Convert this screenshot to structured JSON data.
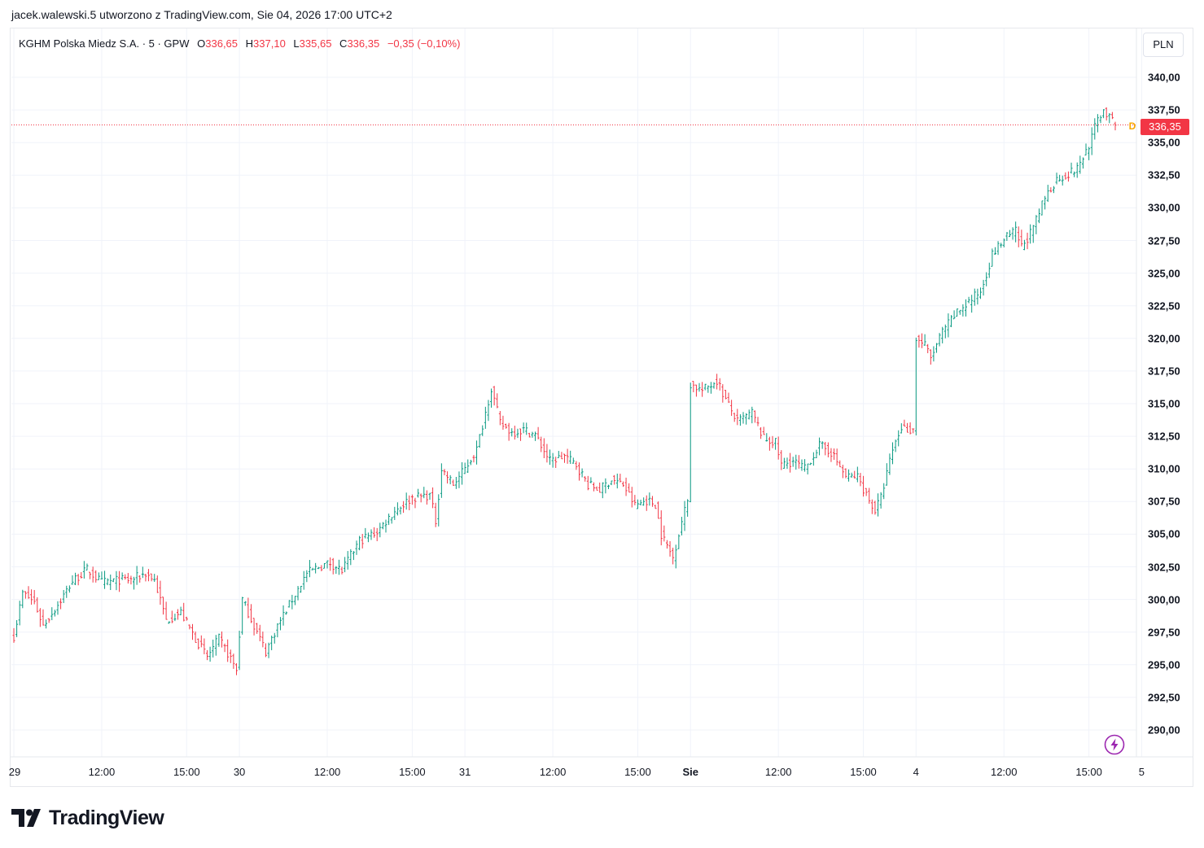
{
  "header": {
    "text": "jacek.walewski.5 utworzono z TradingView.com, Sie 04, 2026 17:00 UTC+2"
  },
  "legend": {
    "symbol": "KGHM Polska Miedz S.A. · 5 · GPW",
    "o_label": "O",
    "o_value": "336,65",
    "h_label": "H",
    "h_value": "337,10",
    "l_label": "L",
    "l_value": "335,65",
    "c_label": "C",
    "c_value": "336,35",
    "change": "−0,35 (−0,10%)"
  },
  "currency": "PLN",
  "last_price_label": "336,35",
  "d_badge": "D",
  "brand": {
    "name": "TradingView",
    "logo_icon": "tradingview-logo-icon"
  },
  "colors": {
    "up": "#089981",
    "down": "#f23645",
    "grid": "#f0f3fa",
    "last_price_line": "#f23645",
    "bolt": "#9c27b0"
  },
  "chart_data": {
    "type": "ohlc-bars",
    "interval": "5",
    "ylim": [
      288.5,
      342
    ],
    "y_ticks": [
      "340,00",
      "337,50",
      "335,00",
      "332,50",
      "330,00",
      "327,50",
      "325,00",
      "322,50",
      "320,00",
      "317,50",
      "315,00",
      "312,50",
      "310,00",
      "307,50",
      "305,00",
      "302,50",
      "300,00",
      "297,50",
      "295,00",
      "292,50",
      "290,00"
    ],
    "y_tick_values": [
      340,
      337.5,
      335,
      332.5,
      330,
      327.5,
      325,
      322.5,
      320,
      317.5,
      315,
      312.5,
      310,
      307.5,
      305,
      302.5,
      300,
      297.5,
      295,
      292.5,
      290
    ],
    "x_ticks": [
      {
        "label": "29",
        "bar": 0,
        "bold": false
      },
      {
        "label": "12:00",
        "bar": 30,
        "bold": false
      },
      {
        "label": "15:00",
        "bar": 59,
        "bold": false
      },
      {
        "label": "30",
        "bar": 77,
        "bold": false
      },
      {
        "label": "12:00",
        "bar": 107,
        "bold": false
      },
      {
        "label": "15:00",
        "bar": 136,
        "bold": false
      },
      {
        "label": "31",
        "bar": 154,
        "bold": false
      },
      {
        "label": "12:00",
        "bar": 184,
        "bold": false
      },
      {
        "label": "15:00",
        "bar": 213,
        "bold": false
      },
      {
        "label": "Sie",
        "bar": 231,
        "bold": true
      },
      {
        "label": "12:00",
        "bar": 261,
        "bold": false
      },
      {
        "label": "15:00",
        "bar": 290,
        "bold": false
      },
      {
        "label": "4",
        "bar": 308,
        "bold": false
      },
      {
        "label": "12:00",
        "bar": 338,
        "bold": false
      },
      {
        "label": "15:00",
        "bar": 367,
        "bold": false
      },
      {
        "label": "5",
        "bar": 385,
        "bold": false
      }
    ],
    "last_price": 336.35,
    "anchors": [
      {
        "d": 0,
        "b": 0,
        "v": 297.2
      },
      {
        "d": 0,
        "b": 3,
        "v": 300.5
      },
      {
        "d": 0,
        "b": 7,
        "v": 299.8
      },
      {
        "d": 0,
        "b": 10,
        "v": 298.0
      },
      {
        "d": 0,
        "b": 15,
        "v": 299.6
      },
      {
        "d": 0,
        "b": 20,
        "v": 301.4
      },
      {
        "d": 0,
        "b": 25,
        "v": 302.3
      },
      {
        "d": 0,
        "b": 30,
        "v": 301.3
      },
      {
        "d": 0,
        "b": 36,
        "v": 301.5
      },
      {
        "d": 0,
        "b": 40,
        "v": 301.5
      },
      {
        "d": 0,
        "b": 45,
        "v": 302.0
      },
      {
        "d": 0,
        "b": 48,
        "v": 301.5
      },
      {
        "d": 0,
        "b": 52,
        "v": 298.4
      },
      {
        "d": 0,
        "b": 57,
        "v": 299.0
      },
      {
        "d": 0,
        "b": 62,
        "v": 297.0
      },
      {
        "d": 0,
        "b": 66,
        "v": 295.6
      },
      {
        "d": 0,
        "b": 70,
        "v": 297.0
      },
      {
        "d": 0,
        "b": 74,
        "v": 295.5
      },
      {
        "d": 0,
        "b": 76,
        "v": 294.6
      },
      {
        "d": 0,
        "b": 78,
        "v": 300.0
      },
      {
        "d": 0,
        "b": 82,
        "v": 298.0
      },
      {
        "d": 0,
        "b": 86,
        "v": 296.0
      },
      {
        "d": 0,
        "b": 90,
        "v": 298.0
      },
      {
        "d": 0,
        "b": 95,
        "v": 300.0
      },
      {
        "d": 0,
        "b": 100,
        "v": 302.0
      },
      {
        "d": 0,
        "b": 104,
        "v": 302.5
      },
      {
        "d": 0,
        "b": 108,
        "v": 302.8
      },
      {
        "d": 0,
        "b": 112,
        "v": 302.2
      },
      {
        "d": 0,
        "b": 118,
        "v": 304.5
      },
      {
        "d": 0,
        "b": 124,
        "v": 305.2
      },
      {
        "d": 0,
        "b": 130,
        "v": 306.8
      },
      {
        "d": 0,
        "b": 136,
        "v": 307.8
      },
      {
        "d": 0,
        "b": 142,
        "v": 308.0
      },
      {
        "d": 0,
        "b": 144,
        "v": 306.0
      },
      {
        "d": 0,
        "b": 146,
        "v": 310.0
      },
      {
        "d": 0,
        "b": 150,
        "v": 308.8
      },
      {
        "d": 0,
        "b": 154,
        "v": 310.0
      },
      {
        "d": 0,
        "b": 158,
        "v": 311.5
      },
      {
        "d": 0,
        "b": 163,
        "v": 316.2
      },
      {
        "d": 0,
        "b": 166,
        "v": 313.5
      },
      {
        "d": 0,
        "b": 170,
        "v": 312.8
      },
      {
        "d": 0,
        "b": 174,
        "v": 313.0
      },
      {
        "d": 0,
        "b": 178,
        "v": 312.6
      },
      {
        "d": 0,
        "b": 183,
        "v": 310.6
      },
      {
        "d": 0,
        "b": 188,
        "v": 311.0
      },
      {
        "d": 0,
        "b": 192,
        "v": 310.3
      },
      {
        "d": 0,
        "b": 196,
        "v": 308.8
      },
      {
        "d": 0,
        "b": 200,
        "v": 308.4
      },
      {
        "d": 0,
        "b": 204,
        "v": 309.2
      },
      {
        "d": 0,
        "b": 208,
        "v": 308.8
      },
      {
        "d": 0,
        "b": 212,
        "v": 307.2
      },
      {
        "d": 0,
        "b": 216,
        "v": 307.6
      },
      {
        "d": 0,
        "b": 219,
        "v": 307.3
      },
      {
        "d": 0,
        "b": 221,
        "v": 305.0
      },
      {
        "d": 0,
        "b": 225,
        "v": 303.2
      },
      {
        "d": 0,
        "b": 228,
        "v": 306.0
      },
      {
        "d": 0,
        "b": 230,
        "v": 307.6
      },
      {
        "d": 1,
        "b": 231,
        "v": 316.5
      },
      {
        "d": 1,
        "b": 235,
        "v": 316.0
      },
      {
        "d": 1,
        "b": 240,
        "v": 316.8
      },
      {
        "d": 1,
        "b": 243,
        "v": 315.3
      },
      {
        "d": 1,
        "b": 247,
        "v": 313.6
      },
      {
        "d": 1,
        "b": 252,
        "v": 314.3
      },
      {
        "d": 1,
        "b": 256,
        "v": 312.3
      },
      {
        "d": 1,
        "b": 260,
        "v": 312.0
      },
      {
        "d": 1,
        "b": 262,
        "v": 310.3
      },
      {
        "d": 1,
        "b": 266,
        "v": 310.6
      },
      {
        "d": 1,
        "b": 270,
        "v": 310.0
      },
      {
        "d": 1,
        "b": 275,
        "v": 311.8
      },
      {
        "d": 1,
        "b": 279,
        "v": 311.3
      },
      {
        "d": 1,
        "b": 284,
        "v": 309.4
      },
      {
        "d": 1,
        "b": 288,
        "v": 309.4
      },
      {
        "d": 1,
        "b": 292,
        "v": 307.6
      },
      {
        "d": 1,
        "b": 294,
        "v": 306.8
      },
      {
        "d": 1,
        "b": 296,
        "v": 307.8
      },
      {
        "d": 1,
        "b": 300,
        "v": 311.5
      },
      {
        "d": 1,
        "b": 303,
        "v": 313.2
      },
      {
        "d": 1,
        "b": 306,
        "v": 313.0
      },
      {
        "d": 2,
        "b": 308,
        "v": 320.0
      },
      {
        "d": 2,
        "b": 311,
        "v": 319.5
      },
      {
        "d": 2,
        "b": 313,
        "v": 318.5
      },
      {
        "d": 2,
        "b": 317,
        "v": 320.5
      },
      {
        "d": 2,
        "b": 322,
        "v": 322.0
      },
      {
        "d": 2,
        "b": 326,
        "v": 322.8
      },
      {
        "d": 2,
        "b": 330,
        "v": 323.6
      },
      {
        "d": 2,
        "b": 334,
        "v": 326.4
      },
      {
        "d": 2,
        "b": 338,
        "v": 327.6
      },
      {
        "d": 2,
        "b": 342,
        "v": 328.2
      },
      {
        "d": 2,
        "b": 344,
        "v": 327.0
      },
      {
        "d": 2,
        "b": 348,
        "v": 328.4
      },
      {
        "d": 2,
        "b": 352,
        "v": 330.8
      },
      {
        "d": 2,
        "b": 356,
        "v": 332.2
      },
      {
        "d": 2,
        "b": 360,
        "v": 332.6
      },
      {
        "d": 2,
        "b": 363,
        "v": 333.0
      },
      {
        "d": 2,
        "b": 367,
        "v": 334.8
      },
      {
        "d": 2,
        "b": 370,
        "v": 336.8
      },
      {
        "d": 2,
        "b": 372,
        "v": 337.5
      },
      {
        "d": 2,
        "b": 374,
        "v": 336.9
      },
      {
        "d": 2,
        "b": 376,
        "v": 336.35
      }
    ]
  }
}
